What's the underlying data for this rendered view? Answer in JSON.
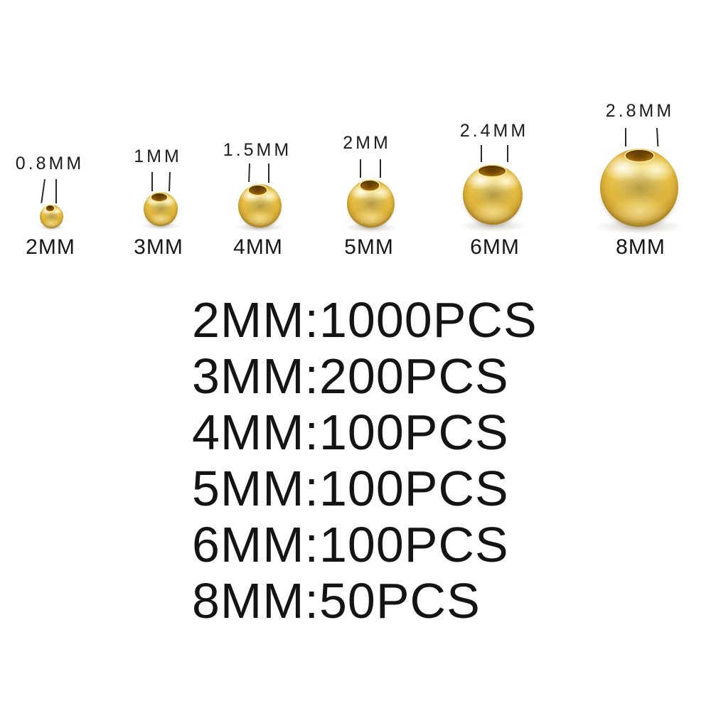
{
  "page": {
    "background_color": "#ffffff",
    "text_color": "#141414"
  },
  "colors": {
    "gold_highlight": "#f9ea9a",
    "gold_mid": "#e4bb3f",
    "gold_shadow": "#8f6a15",
    "hole_amber": "#7d4f05",
    "pointer_line": "#2a2a2a"
  },
  "beads": [
    {
      "hole_label": "0.8MM",
      "size_label": "2MM"
    },
    {
      "hole_label": "1MM",
      "size_label": "3MM"
    },
    {
      "hole_label": "1.5MM",
      "size_label": "4MM"
    },
    {
      "hole_label": "2MM",
      "size_label": "5MM"
    },
    {
      "hole_label": "2.4MM",
      "size_label": "6MM"
    },
    {
      "hole_label": "2.8MM",
      "size_label": "8MM"
    }
  ],
  "specs": [
    "2MM:1000PCS",
    "3MM:200PCS",
    "4MM:100PCS",
    "5MM:100PCS",
    "6MM:100PCS",
    "8MM:50PCS"
  ]
}
